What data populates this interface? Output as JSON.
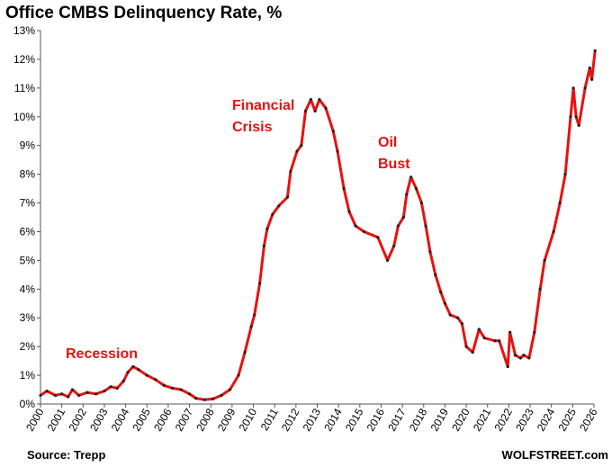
{
  "chart_data": {
    "type": "line",
    "title": "Office CMBS Delinquency Rate, %",
    "source": "Source: Trepp",
    "brand": "WOLFSTREET.com",
    "annotations": [
      [
        "Recession"
      ],
      [
        "Financial",
        "Crisis"
      ],
      [
        "Oil",
        "Bust"
      ]
    ],
    "xlim": [
      2000,
      2026
    ],
    "xticks": [
      2000,
      2001,
      2002,
      2003,
      2004,
      2005,
      2006,
      2007,
      2008,
      2009,
      2010,
      2011,
      2012,
      2013,
      2014,
      2015,
      2016,
      2017,
      2018,
      2019,
      2020,
      2021,
      2022,
      2023,
      2024,
      2025,
      2026
    ],
    "ylim": [
      0,
      13
    ],
    "yticks": [
      {
        "value": 0,
        "label": "0%"
      },
      {
        "value": 1,
        "label": "1%"
      },
      {
        "value": 2,
        "label": "2%"
      },
      {
        "value": 3,
        "label": "3%"
      },
      {
        "value": 4,
        "label": "4%"
      },
      {
        "value": 5,
        "label": "5%"
      },
      {
        "value": 6,
        "label": "6%"
      },
      {
        "value": 7,
        "label": "7%"
      },
      {
        "value": 8,
        "label": "8%"
      },
      {
        "value": 9,
        "label": "9%"
      },
      {
        "value": 10,
        "label": "10%"
      },
      {
        "value": 11,
        "label": "11%"
      },
      {
        "value": 12,
        "label": "12%"
      },
      {
        "value": 13,
        "label": "13%"
      }
    ],
    "grid": false,
    "color": "#e8110f",
    "marker_color": "#222222",
    "x": [
      2000.0,
      2000.3,
      2000.7,
      2001.0,
      2001.3,
      2001.5,
      2001.8,
      2002.2,
      2002.6,
      2003.0,
      2003.3,
      2003.6,
      2003.9,
      2004.1,
      2004.35,
      2004.6,
      2005.0,
      2005.4,
      2005.8,
      2006.2,
      2006.6,
      2007.0,
      2007.3,
      2007.7,
      2008.1,
      2008.5,
      2008.9,
      2009.3,
      2009.6,
      2009.9,
      2010.05,
      2010.3,
      2010.5,
      2010.65,
      2010.9,
      2011.2,
      2011.6,
      2011.75,
      2012.05,
      2012.25,
      2012.45,
      2012.7,
      2012.9,
      2013.1,
      2013.4,
      2013.75,
      2013.95,
      2014.25,
      2014.5,
      2014.8,
      2015.2,
      2015.85,
      2016.3,
      2016.6,
      2016.8,
      2017.05,
      2017.2,
      2017.4,
      2017.65,
      2017.9,
      2018.1,
      2018.3,
      2018.55,
      2018.8,
      2019.0,
      2019.25,
      2019.6,
      2019.8,
      2020.0,
      2020.3,
      2020.6,
      2020.85,
      2021.35,
      2021.55,
      2021.95,
      2022.05,
      2022.3,
      2022.55,
      2022.7,
      2022.95,
      2023.2,
      2023.47,
      2023.68,
      2024.1,
      2024.4,
      2024.65,
      2024.9,
      2025.03,
      2025.16,
      2025.29,
      2025.58,
      2025.8,
      2025.9,
      2026.05
    ],
    "values": [
      0.3,
      0.45,
      0.3,
      0.35,
      0.25,
      0.5,
      0.3,
      0.4,
      0.35,
      0.45,
      0.6,
      0.55,
      0.8,
      1.1,
      1.3,
      1.2,
      1.0,
      0.85,
      0.65,
      0.55,
      0.5,
      0.35,
      0.2,
      0.15,
      0.18,
      0.3,
      0.5,
      1.0,
      1.8,
      2.7,
      3.1,
      4.2,
      5.5,
      6.1,
      6.6,
      6.9,
      7.2,
      8.1,
      8.8,
      9.0,
      10.2,
      10.6,
      10.2,
      10.6,
      10.3,
      9.5,
      8.8,
      7.5,
      6.7,
      6.2,
      6.0,
      5.8,
      5.0,
      5.5,
      6.2,
      6.5,
      7.3,
      7.9,
      7.5,
      7.0,
      6.2,
      5.3,
      4.5,
      3.9,
      3.5,
      3.1,
      3.0,
      2.8,
      2.0,
      1.8,
      2.6,
      2.3,
      2.2,
      2.2,
      1.3,
      2.5,
      1.7,
      1.6,
      1.7,
      1.6,
      2.5,
      4.0,
      5.0,
      6.0,
      7.0,
      8.0,
      10.0,
      11.0,
      10.0,
      9.7,
      11.0,
      11.7,
      11.3,
      12.3
    ]
  }
}
